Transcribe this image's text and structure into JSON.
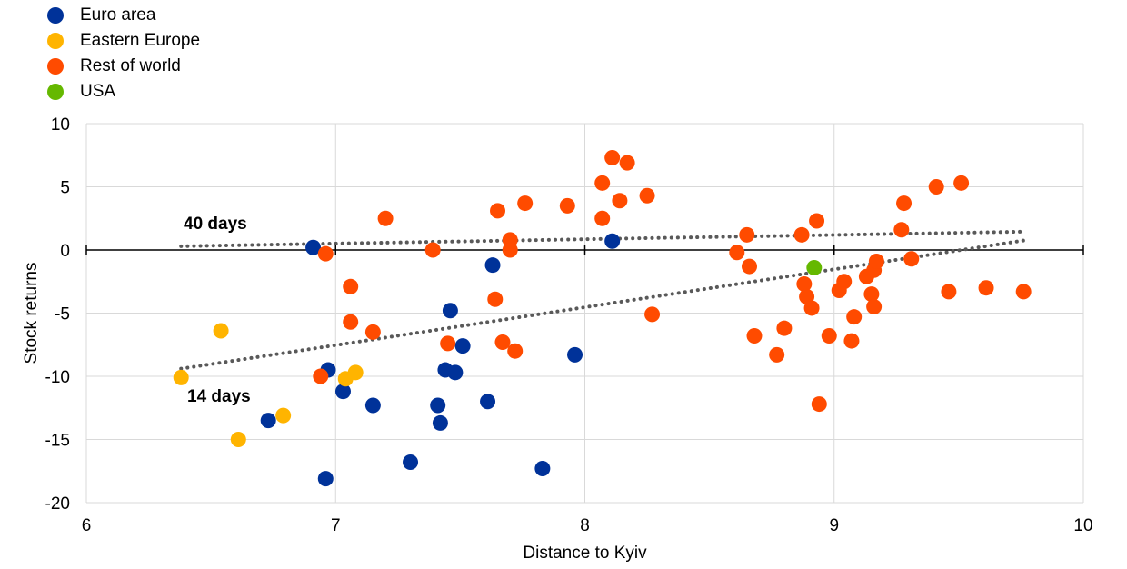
{
  "chart_data": {
    "type": "scatter",
    "title": "",
    "xlabel": "Distance to Kyiv",
    "ylabel": "Stock returns",
    "xlim": [
      6,
      10
    ],
    "ylim": [
      -20,
      10
    ],
    "x_ticks": [
      6,
      7,
      8,
      9,
      10
    ],
    "y_ticks": [
      10,
      5,
      0,
      -5,
      -10,
      -15,
      -20
    ],
    "grid": true,
    "legend_position": "top-left",
    "series": [
      {
        "name": "Euro area",
        "color": "#003299",
        "points": [
          [
            6.91,
            0.2
          ],
          [
            6.97,
            -9.5
          ],
          [
            7.03,
            -11.2
          ],
          [
            6.73,
            -13.5
          ],
          [
            7.15,
            -12.3
          ],
          [
            6.96,
            -18.1
          ],
          [
            7.3,
            -16.8
          ],
          [
            7.41,
            -12.3
          ],
          [
            7.42,
            -13.7
          ],
          [
            7.44,
            -9.5
          ],
          [
            7.46,
            -4.8
          ],
          [
            7.48,
            -9.7
          ],
          [
            7.51,
            -7.6
          ],
          [
            7.61,
            -12.0
          ],
          [
            7.63,
            -1.2
          ],
          [
            7.83,
            -17.3
          ],
          [
            7.96,
            -8.3
          ],
          [
            8.11,
            0.7
          ]
        ]
      },
      {
        "name": "Eastern Europe",
        "color": "#FFB400",
        "points": [
          [
            6.38,
            -10.1
          ],
          [
            6.54,
            -6.4
          ],
          [
            6.61,
            -15.0
          ],
          [
            6.79,
            -13.1
          ],
          [
            7.04,
            -10.2
          ],
          [
            7.08,
            -9.7
          ]
        ]
      },
      {
        "name": "Rest of world",
        "color": "#FF4B00",
        "points": [
          [
            6.94,
            -10.0
          ],
          [
            6.96,
            -0.3
          ],
          [
            7.06,
            -2.9
          ],
          [
            7.06,
            -5.7
          ],
          [
            7.15,
            -6.5
          ],
          [
            7.2,
            2.5
          ],
          [
            7.39,
            0.0
          ],
          [
            7.45,
            -7.4
          ],
          [
            7.65,
            3.1
          ],
          [
            7.64,
            -3.9
          ],
          [
            7.67,
            -7.3
          ],
          [
            7.7,
            0.8
          ],
          [
            7.7,
            0.0
          ],
          [
            7.72,
            -8.0
          ],
          [
            7.76,
            3.7
          ],
          [
            7.93,
            3.5
          ],
          [
            8.07,
            5.3
          ],
          [
            8.07,
            2.5
          ],
          [
            8.11,
            7.3
          ],
          [
            8.14,
            3.9
          ],
          [
            8.17,
            6.9
          ],
          [
            8.25,
            4.3
          ],
          [
            8.27,
            -5.1
          ],
          [
            8.61,
            -0.2
          ],
          [
            8.65,
            1.2
          ],
          [
            8.66,
            -1.3
          ],
          [
            8.68,
            -6.8
          ],
          [
            8.77,
            -8.3
          ],
          [
            8.8,
            -6.2
          ],
          [
            8.87,
            1.2
          ],
          [
            8.88,
            -2.7
          ],
          [
            8.89,
            -3.7
          ],
          [
            8.91,
            -4.6
          ],
          [
            8.93,
            2.3
          ],
          [
            8.94,
            -12.2
          ],
          [
            8.98,
            -6.8
          ],
          [
            9.02,
            -3.2
          ],
          [
            9.04,
            -2.5
          ],
          [
            9.07,
            -7.2
          ],
          [
            9.08,
            -5.3
          ],
          [
            9.13,
            -2.1
          ],
          [
            9.15,
            -3.5
          ],
          [
            9.16,
            -4.5
          ],
          [
            9.16,
            -1.6
          ],
          [
            9.17,
            -0.9
          ],
          [
            9.27,
            1.6
          ],
          [
            9.28,
            3.7
          ],
          [
            9.31,
            -0.7
          ],
          [
            9.41,
            5.0
          ],
          [
            9.46,
            -3.3
          ],
          [
            9.51,
            5.3
          ],
          [
            9.61,
            -3.0
          ],
          [
            9.76,
            -3.3
          ]
        ]
      },
      {
        "name": "USA",
        "color": "#65B800",
        "points": [
          [
            8.92,
            -1.4
          ]
        ]
      }
    ],
    "trendlines": [
      {
        "label": "40 days",
        "x": [
          6.38,
          9.76
        ],
        "y": [
          0.3,
          1.45
        ],
        "style": "dotted",
        "color": "#595959"
      },
      {
        "label": "14 days",
        "x": [
          6.38,
          9.76
        ],
        "y": [
          -9.4,
          0.75
        ],
        "style": "dotted",
        "color": "#595959"
      }
    ]
  }
}
